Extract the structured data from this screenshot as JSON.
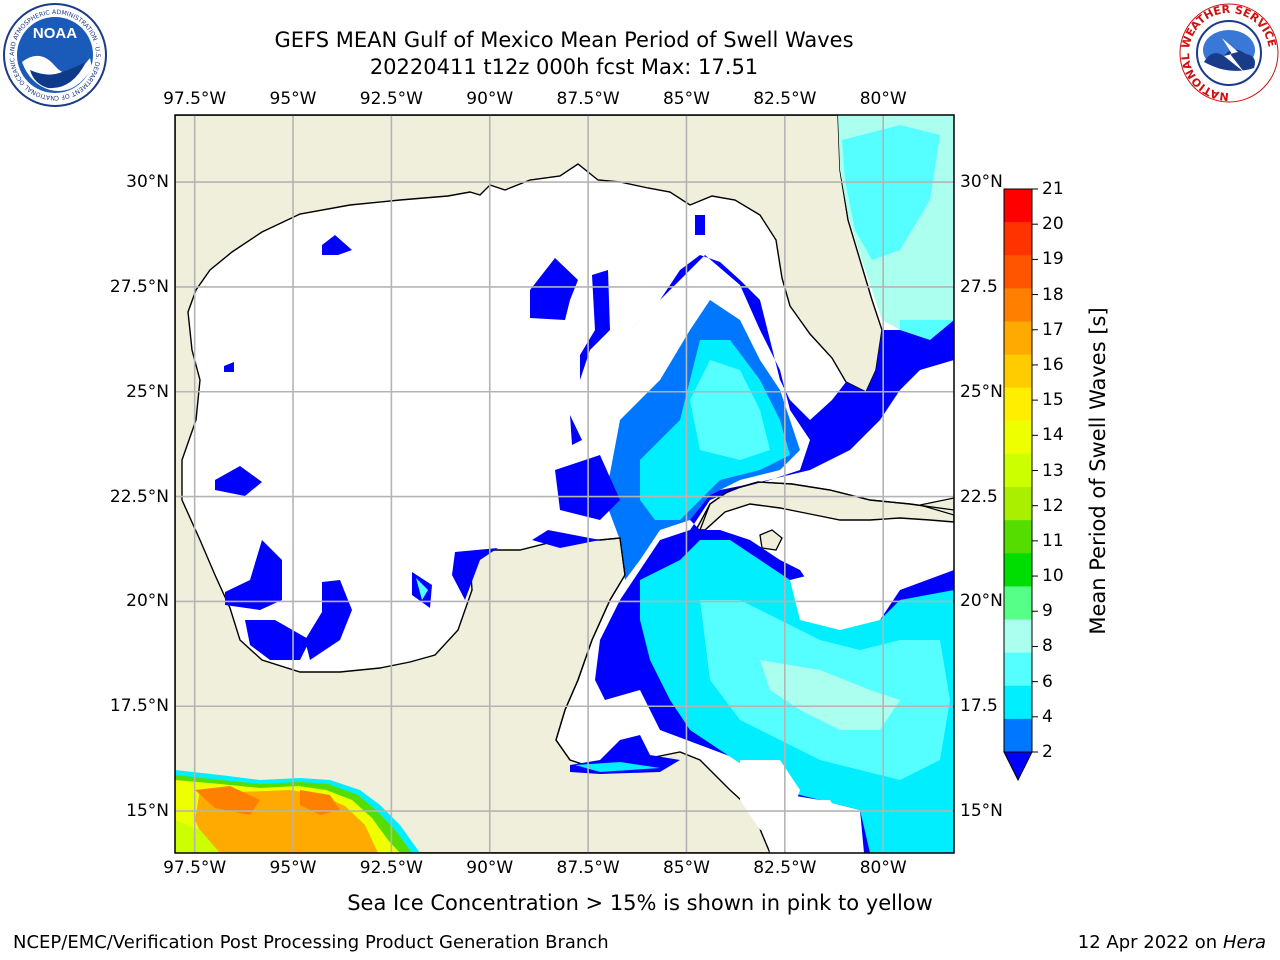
{
  "title": {
    "line1": "GEFS MEAN Gulf of Mexico Mean Period of Swell Waves",
    "line2": "20220411 t12z 000h fcst   Max: 17.51"
  },
  "axes": {
    "lon_labels": [
      "97.5°W",
      "95°W",
      "92.5°W",
      "90°W",
      "87.5°W",
      "85°W",
      "82.5°W",
      "80°W"
    ],
    "lon_values": [
      -97.5,
      -95,
      -92.5,
      -90,
      -87.5,
      -85,
      -82.5,
      -80
    ],
    "lat_labels": [
      "30°N",
      "27.5°N",
      "25°N",
      "22.5°N",
      "20°N",
      "17.5°N",
      "15°N"
    ],
    "lat_labels_right": [
      "30°N",
      "27.5",
      "25°N",
      "22.5",
      "20°N",
      "17.5",
      "15°N"
    ],
    "lat_values": [
      30,
      27.5,
      25,
      22.5,
      20,
      17.5,
      15
    ],
    "lon_range": [
      -98,
      -78.2
    ],
    "lat_range": [
      14,
      31.6
    ]
  },
  "colorbar": {
    "label": "Mean Period of Swell Waves [s]",
    "ticks": [
      "21",
      "20",
      "19",
      "18",
      "17",
      "16",
      "15",
      "14",
      "13",
      "12",
      "11",
      "10",
      "9",
      "8",
      "6",
      "4",
      "2"
    ],
    "colors": [
      "#ff0000",
      "#ff3300",
      "#ff5500",
      "#ff8000",
      "#ffaa00",
      "#ffcc00",
      "#ffee00",
      "#eeff00",
      "#ccff00",
      "#aaee00",
      "#55dd00",
      "#00dd00",
      "#55ff88",
      "#aaffee",
      "#55ffff",
      "#00eeff",
      "#0077ff",
      "#0000ff"
    ],
    "extend": "min"
  },
  "colors": {
    "land": "#efefdc",
    "ocean_empty": "#ffffff",
    "coast": "#000000",
    "grid": "#b4b4b4"
  },
  "logos": {
    "noaa_text": "NOAA",
    "noaa_ring": "NATIONAL OCEANIC AND ATMOSPHERIC ADMINISTRATION · U.S. DEPARTMENT OF COMMERCE",
    "nws_ring": "NATIONAL WEATHER SERVICE"
  },
  "note": "Sea Ice Concentration > 15% is shown in pink to yellow",
  "footer": {
    "left": "NCEP/EMC/Verification Post Processing Product Generation Branch",
    "date": "12 Apr 2022 on ",
    "machine": "Hera"
  }
}
